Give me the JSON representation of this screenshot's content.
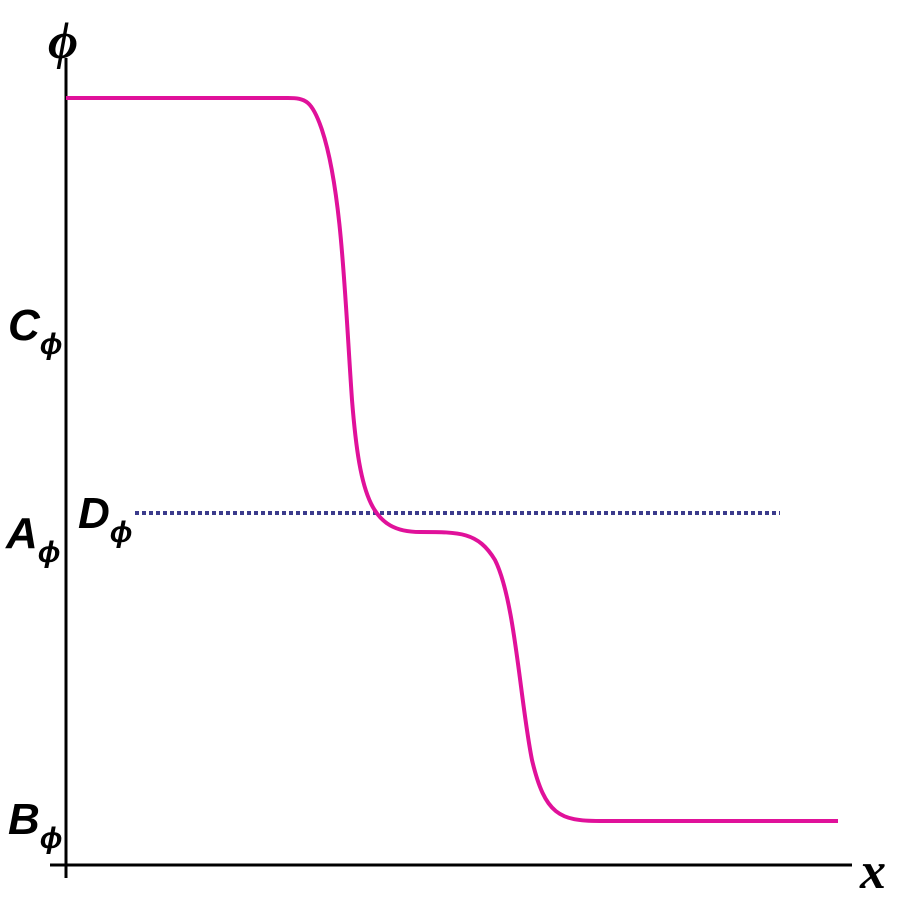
{
  "axes": {
    "y_label": "ϕ",
    "x_label": "x"
  },
  "levels": [
    {
      "label": "C",
      "subscript": "ϕ"
    },
    {
      "label": "A",
      "subscript": "ϕ"
    },
    {
      "label": "B",
      "subscript": "ϕ"
    }
  ],
  "annotation": {
    "label": "D",
    "subscript": "ϕ"
  }
}
